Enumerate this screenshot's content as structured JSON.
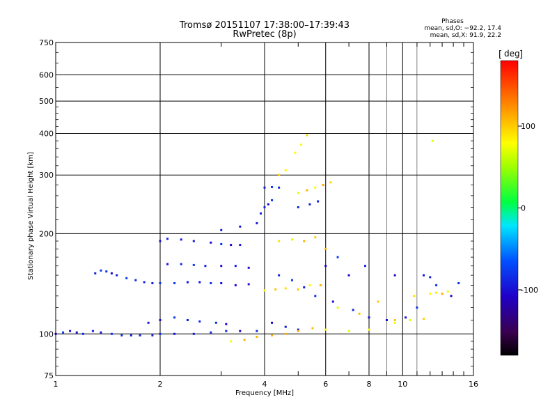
{
  "chart_data": {
    "type": "scatter",
    "title": "Tromsø 20151107 17:38:00–17:39:43",
    "subtitle": "RwPretec (8p)",
    "xlabel": "Frequency [MHz]",
    "ylabel": "Stationary phase Virtual Height [km]",
    "x_scale": "log",
    "y_scale": "log",
    "xlim": [
      1,
      16
    ],
    "ylim": [
      75,
      750
    ],
    "x_ticks": [
      1,
      2,
      4,
      6,
      8,
      10,
      16
    ],
    "x_tick_labels": [
      "1",
      "2",
      "4",
      "6",
      "8",
      "10",
      "16"
    ],
    "y_ticks": [
      75,
      100,
      200,
      300,
      400,
      500,
      600,
      750
    ],
    "y_tick_labels": [
      "75",
      "100",
      "200",
      "300",
      "400",
      "500",
      "600",
      "750"
    ],
    "grid": true,
    "colorbar": {
      "label": "deg",
      "range": [
        -180,
        180
      ],
      "ticks": [
        100,
        0,
        -100
      ],
      "tick_labels": [
        "100",
        "0",
        "-100"
      ]
    },
    "stats": {
      "heading": "Phases",
      "line1": "mean, sd,O: −92.2, 17.4",
      "line2": "mean, sd,X:  91.9, 22.2"
    },
    "series": [
      {
        "mode": "O",
        "phase_mean": -92.2,
        "phase_sd": 17.4,
        "points": [
          [
            1.0,
            100
          ],
          [
            1.05,
            101
          ],
          [
            1.1,
            102
          ],
          [
            1.15,
            101
          ],
          [
            1.2,
            100
          ],
          [
            1.28,
            102
          ],
          [
            1.35,
            101
          ],
          [
            1.45,
            100
          ],
          [
            1.55,
            99
          ],
          [
            1.65,
            99
          ],
          [
            1.75,
            99
          ],
          [
            1.9,
            99
          ],
          [
            2.0,
            100
          ],
          [
            2.2,
            100
          ],
          [
            2.5,
            100
          ],
          [
            2.8,
            101
          ],
          [
            3.1,
            102
          ],
          [
            3.4,
            102
          ],
          [
            3.8,
            102
          ],
          [
            1.3,
            152
          ],
          [
            1.35,
            155
          ],
          [
            1.4,
            154
          ],
          [
            1.45,
            152
          ],
          [
            1.5,
            150
          ],
          [
            1.6,
            147
          ],
          [
            1.7,
            145
          ],
          [
            1.8,
            143
          ],
          [
            1.9,
            142
          ],
          [
            2.0,
            142
          ],
          [
            2.2,
            142
          ],
          [
            2.4,
            143
          ],
          [
            2.6,
            143
          ],
          [
            2.8,
            142
          ],
          [
            3.0,
            142
          ],
          [
            3.3,
            140
          ],
          [
            3.6,
            141
          ],
          [
            1.85,
            108
          ],
          [
            2.0,
            110
          ],
          [
            2.2,
            112
          ],
          [
            2.4,
            110
          ],
          [
            2.6,
            109
          ],
          [
            2.9,
            108
          ],
          [
            3.1,
            107
          ],
          [
            2.0,
            190
          ],
          [
            2.1,
            193
          ],
          [
            2.3,
            192
          ],
          [
            2.5,
            190
          ],
          [
            2.8,
            188
          ],
          [
            3.0,
            186
          ],
          [
            3.2,
            185
          ],
          [
            3.4,
            185
          ],
          [
            2.1,
            162
          ],
          [
            2.3,
            162
          ],
          [
            2.5,
            161
          ],
          [
            2.7,
            160
          ],
          [
            3.0,
            160
          ],
          [
            3.3,
            160
          ],
          [
            3.6,
            158
          ],
          [
            3.0,
            205
          ],
          [
            3.4,
            210
          ],
          [
            3.8,
            215
          ],
          [
            3.9,
            230
          ],
          [
            4.0,
            240
          ],
          [
            4.1,
            245
          ],
          [
            4.2,
            252
          ],
          [
            4.0,
            275
          ],
          [
            4.2,
            276
          ],
          [
            4.4,
            275
          ],
          [
            5.0,
            240
          ],
          [
            5.4,
            245
          ],
          [
            5.7,
            250
          ],
          [
            4.4,
            150
          ],
          [
            4.8,
            145
          ],
          [
            5.2,
            138
          ],
          [
            5.6,
            130
          ],
          [
            6.3,
            125
          ],
          [
            7.2,
            118
          ],
          [
            8.0,
            112
          ],
          [
            9.0,
            110
          ],
          [
            10.2,
            112
          ],
          [
            11.0,
            120
          ],
          [
            12.5,
            140
          ],
          [
            13.8,
            130
          ],
          [
            14.5,
            142
          ],
          [
            4.2,
            108
          ],
          [
            4.6,
            105
          ],
          [
            5.0,
            103
          ],
          [
            6.0,
            160
          ],
          [
            6.5,
            170
          ],
          [
            7.0,
            150
          ],
          [
            7.8,
            160
          ],
          [
            9.5,
            150
          ],
          [
            11.5,
            150
          ],
          [
            12.0,
            148
          ]
        ]
      },
      {
        "mode": "X",
        "phase_mean": 91.9,
        "phase_sd": 22.2,
        "points": [
          [
            3.2,
            95
          ],
          [
            3.5,
            96
          ],
          [
            3.8,
            98
          ],
          [
            4.2,
            99
          ],
          [
            4.6,
            100
          ],
          [
            5.0,
            102
          ],
          [
            5.5,
            104
          ],
          [
            6.0,
            103
          ],
          [
            7.0,
            102
          ],
          [
            8.0,
            103
          ],
          [
            9.5,
            108
          ],
          [
            10.5,
            110
          ],
          [
            11.5,
            111
          ],
          [
            4.0,
            135
          ],
          [
            4.3,
            136
          ],
          [
            4.6,
            137
          ],
          [
            5.0,
            136
          ],
          [
            5.4,
            140
          ],
          [
            5.8,
            140
          ],
          [
            12.0,
            132
          ],
          [
            12.5,
            133
          ],
          [
            13.0,
            132
          ],
          [
            13.5,
            134
          ],
          [
            4.4,
            190
          ],
          [
            4.8,
            192
          ],
          [
            5.2,
            190
          ],
          [
            5.6,
            195
          ],
          [
            6.0,
            180
          ],
          [
            5.0,
            265
          ],
          [
            5.3,
            270
          ],
          [
            5.6,
            275
          ],
          [
            5.9,
            280
          ],
          [
            6.2,
            285
          ],
          [
            4.4,
            300
          ],
          [
            4.6,
            310
          ],
          [
            4.9,
            350
          ],
          [
            5.1,
            370
          ],
          [
            5.3,
            395
          ],
          [
            6.5,
            120
          ],
          [
            7.5,
            115
          ],
          [
            8.5,
            125
          ],
          [
            9.5,
            110
          ],
          [
            10.8,
            130
          ],
          [
            12.2,
            380
          ]
        ]
      }
    ]
  }
}
